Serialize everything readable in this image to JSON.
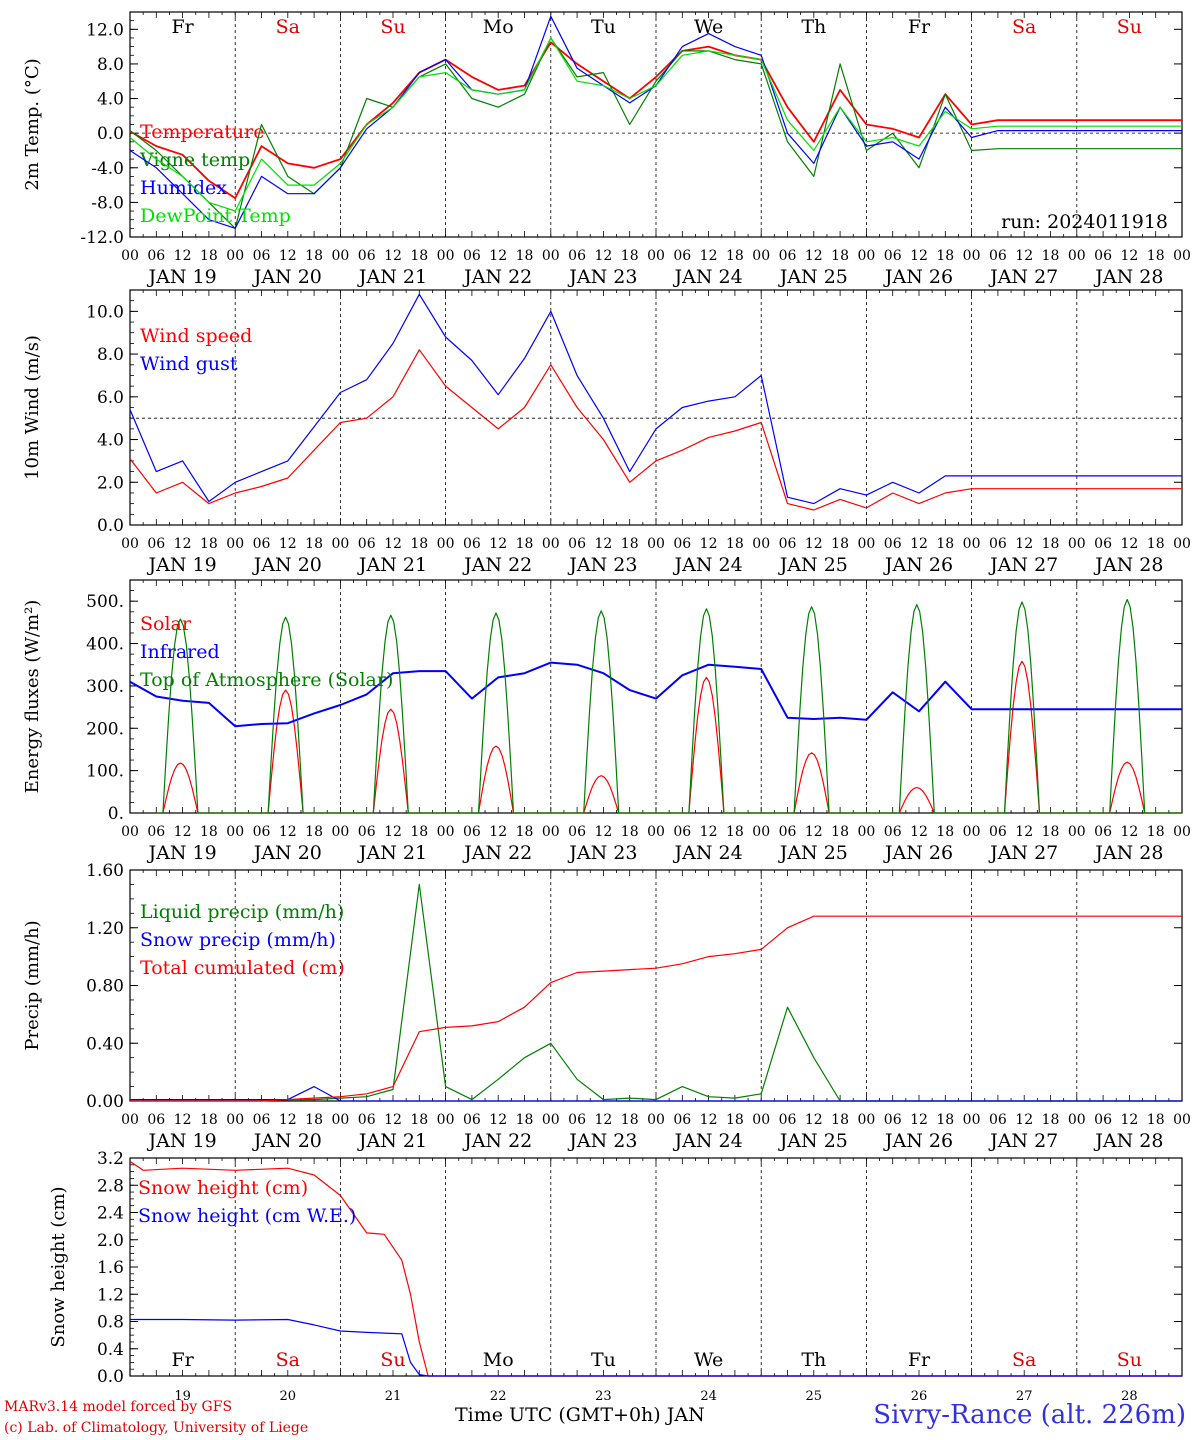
{
  "run_label": "run: 2024011918",
  "day_names": [
    "Fr",
    "Sa",
    "Su",
    "Mo",
    "Tu",
    "We",
    "Th",
    "Fr",
    "Sa",
    "Su"
  ],
  "day_name_colors": [
    "#000000",
    "#e00000",
    "#e00000",
    "#000000",
    "#000000",
    "#000000",
    "#000000",
    "#000000",
    "#e00000",
    "#e00000"
  ],
  "date_labels": [
    "JAN 19",
    "JAN 20",
    "JAN 21",
    "JAN 22",
    "JAN 23",
    "JAN 24",
    "JAN 25",
    "JAN 26",
    "JAN 27",
    "JAN 28"
  ],
  "hour_labels": [
    "00",
    "06",
    "12",
    "18"
  ],
  "final_hour_label": "00",
  "bottom_day_numbers": [
    "19",
    "20",
    "21",
    "22",
    "23",
    "24",
    "25",
    "26",
    "27",
    "28"
  ],
  "x_axis_title": "Time UTC (GMT+0h) JAN",
  "station": "Sivry-Rance (alt. 226m)",
  "credits": [
    "MARv3.14 model forced by GFS",
    "(c) Lab. of Climatology, University of Liege"
  ],
  "chart_data": [
    {
      "type": "line",
      "ylabel": "2m Temp. (°C)",
      "ylim": [
        -12,
        14
      ],
      "yticks": [
        "-12.0",
        "-8.0",
        "-4.0",
        "0.0",
        "4.0",
        "8.0",
        "12.0"
      ],
      "ytick_values": [
        -12,
        -8,
        -4,
        0,
        4,
        8,
        12
      ],
      "reference_line": 0,
      "x_hours": [
        0,
        6,
        12,
        18,
        24,
        30,
        36,
        42,
        48,
        54,
        60,
        66,
        72,
        78,
        84,
        90,
        96,
        102,
        108,
        114,
        120,
        126,
        132,
        138,
        144,
        150,
        156,
        162,
        168,
        174,
        180,
        186,
        192,
        198,
        204,
        210,
        216,
        222,
        228,
        234,
        240
      ],
      "series": [
        {
          "name": "Temperature",
          "color": "#ff0000",
          "values": [
            0.2,
            -1.5,
            -2.5,
            -5.5,
            -7.5,
            -1.5,
            -3.5,
            -4,
            -3,
            1,
            3.5,
            7,
            8.5,
            6.5,
            5,
            5.5,
            10.5,
            8,
            6,
            4,
            6.5,
            9.5,
            10,
            9,
            8.5,
            3,
            -1,
            5,
            1,
            0.5,
            -0.5,
            4.5,
            1,
            1.5,
            1.5,
            1.5,
            1.5,
            1.5,
            1.5,
            1.5,
            1.5
          ]
        },
        {
          "name": "Vigne temp",
          "color": "#008000",
          "values": [
            0.3,
            -2,
            -5,
            -8,
            -11,
            1,
            -5,
            -7,
            -4,
            4,
            3,
            6.5,
            8,
            4,
            3,
            4.5,
            11,
            6.5,
            7,
            1,
            6,
            9.5,
            9.5,
            8.5,
            8,
            -1,
            -5,
            8,
            -2,
            0,
            -4,
            4.5,
            -2,
            -1.8,
            -1.8,
            -1.8,
            -1.8,
            -1.8,
            -1.8,
            -1.8,
            -1.8
          ]
        },
        {
          "name": "Humidex",
          "color": "#0000ff",
          "values": [
            -2,
            -4,
            -7,
            -10,
            -11,
            -5,
            -7,
            -7,
            -4,
            0.5,
            3,
            7,
            8.5,
            5,
            4.5,
            5,
            13.5,
            7.5,
            5.5,
            3.5,
            5.5,
            10,
            11.5,
            10,
            9,
            0,
            -3.5,
            3,
            -1.5,
            -1,
            -3,
            3,
            -0.5,
            0.3,
            0.3,
            0.3,
            0.3,
            0.3,
            0.3,
            0.3,
            0.3
          ]
        },
        {
          "name": "DewPoint Temp",
          "color": "#00e000",
          "values": [
            -0.5,
            -3,
            -5,
            -8,
            -9,
            -3,
            -6,
            -6,
            -3.5,
            1,
            3,
            6.5,
            7,
            5,
            4.5,
            5,
            11,
            6,
            5.5,
            4,
            5.5,
            9,
            9.5,
            9,
            8.5,
            1.5,
            -2,
            3,
            -1,
            -0.5,
            -1.5,
            2.5,
            0.5,
            0.8,
            0.8,
            0.8,
            0.8,
            0.8,
            0.8,
            0.8,
            0.8
          ]
        }
      ]
    },
    {
      "type": "line",
      "ylabel": "10m Wind (m/s)",
      "ylim": [
        0,
        11
      ],
      "yticks": [
        "0.0",
        "2.0",
        "4.0",
        "6.0",
        "8.0",
        "10.0"
      ],
      "ytick_values": [
        0,
        2,
        4,
        6,
        8,
        10
      ],
      "reference_line": 5,
      "x_hours": [
        0,
        6,
        12,
        18,
        24,
        30,
        36,
        42,
        48,
        54,
        60,
        66,
        72,
        78,
        84,
        90,
        96,
        102,
        108,
        114,
        120,
        126,
        132,
        138,
        144,
        150,
        156,
        162,
        168,
        174,
        180,
        186,
        192,
        198,
        204,
        210,
        216,
        222,
        228,
        234,
        240
      ],
      "series": [
        {
          "name": "Wind speed",
          "color": "#ff0000",
          "values": [
            3.1,
            1.5,
            2,
            1,
            1.5,
            1.8,
            2.2,
            3.5,
            4.8,
            5,
            6,
            8.2,
            6.5,
            5.5,
            4.5,
            5.5,
            7.5,
            5.5,
            4,
            2,
            3,
            3.5,
            4.1,
            4.4,
            4.8,
            1,
            0.7,
            1.2,
            0.8,
            1.5,
            1,
            1.5,
            1.7,
            1.7,
            1.7,
            1.7,
            1.7,
            1.7,
            1.7,
            1.7,
            1.7
          ]
        },
        {
          "name": "Wind gust",
          "color": "#0000ff",
          "values": [
            5.4,
            2.5,
            3,
            1.1,
            2,
            2.5,
            3,
            4.6,
            6.2,
            6.8,
            8.5,
            10.8,
            8.8,
            7.7,
            6.1,
            7.8,
            10,
            7,
            5,
            2.5,
            4.5,
            5.5,
            5.8,
            6,
            7,
            1.3,
            1,
            1.7,
            1.4,
            2,
            1.5,
            2.3,
            2.3,
            2.3,
            2.3,
            2.3,
            2.3,
            2.3,
            2.3,
            2.3,
            2.3
          ]
        }
      ]
    },
    {
      "type": "line",
      "ylabel": "Energy fluxes (W/m²)",
      "ylim": [
        0,
        550
      ],
      "yticks": [
        "0.",
        "100.",
        "200.",
        "300.",
        "400.",
        "500."
      ],
      "ytick_values": [
        0,
        100,
        200,
        300,
        400,
        500
      ],
      "series": [
        {
          "name": "Solar",
          "color": "#ff0000",
          "day_peaks": [
            118,
            290,
            245,
            158,
            88,
            320,
            142,
            60,
            358,
            120
          ]
        },
        {
          "name": "Infrared",
          "color": "#0000ff",
          "x_hours": [
            0,
            6,
            12,
            18,
            24,
            30,
            36,
            42,
            48,
            54,
            60,
            66,
            72,
            78,
            84,
            90,
            96,
            102,
            108,
            114,
            120,
            126,
            132,
            138,
            144,
            150,
            156,
            162,
            168,
            174,
            180,
            186,
            192,
            198,
            204,
            210,
            216,
            222,
            228,
            234,
            240
          ],
          "values": [
            310,
            275,
            265,
            260,
            205,
            210,
            212,
            235,
            255,
            280,
            330,
            335,
            335,
            270,
            320,
            330,
            355,
            350,
            330,
            290,
            270,
            325,
            350,
            345,
            340,
            225,
            222,
            225,
            220,
            285,
            240,
            310,
            245,
            245,
            245,
            245,
            245,
            245,
            245,
            245,
            245
          ]
        },
        {
          "name": "Top of Atmosphere (Solar)",
          "color": "#008000",
          "day_peaks": [
            458,
            462,
            467,
            472,
            477,
            482,
            487,
            492,
            498,
            504
          ]
        }
      ]
    },
    {
      "type": "line",
      "ylabel": "Precip (mm/h)",
      "ylim": [
        0,
        1.6
      ],
      "yticks": [
        "0.00",
        "0.40",
        "0.80",
        "1.20",
        "1.60"
      ],
      "ytick_values": [
        0,
        0.4,
        0.8,
        1.2,
        1.6
      ],
      "x_hours": [
        0,
        6,
        12,
        18,
        24,
        30,
        36,
        42,
        48,
        54,
        60,
        66,
        72,
        78,
        84,
        90,
        96,
        102,
        108,
        114,
        120,
        126,
        132,
        138,
        144,
        150,
        156,
        162,
        168,
        174,
        180,
        186,
        192,
        198,
        204,
        210,
        216,
        222,
        228,
        234,
        240
      ],
      "series": [
        {
          "name": "Liquid precip (mm/h)",
          "color": "#008000",
          "values": [
            0.01,
            0.01,
            0.01,
            0.01,
            0.01,
            0.01,
            0.01,
            0.01,
            0.02,
            0.03,
            0.08,
            1.5,
            0.1,
            0.01,
            0.15,
            0.3,
            0.4,
            0.15,
            0.01,
            0.02,
            0.01,
            0.1,
            0.03,
            0.02,
            0.05,
            0.65,
            0.3,
            0,
            0,
            0,
            0,
            0,
            0,
            0,
            0,
            0,
            0,
            0,
            0,
            0,
            0
          ]
        },
        {
          "name": "Snow precip (mm/h)",
          "color": "#0000ff",
          "values": [
            0.01,
            0.01,
            0.01,
            0.01,
            0.01,
            0.01,
            0.01,
            0.1,
            0,
            0,
            0,
            0,
            0,
            0,
            0,
            0,
            0,
            0,
            0,
            0,
            0,
            0,
            0,
            0,
            0,
            0,
            0,
            0,
            0,
            0,
            0,
            0,
            0,
            0,
            0,
            0,
            0,
            0,
            0,
            0,
            0
          ]
        },
        {
          "name": "Total cumulated (cm)",
          "color": "#ff0000",
          "values": [
            0.0,
            0.0,
            0.0,
            0.0,
            0.0,
            0.0,
            0.01,
            0.02,
            0.03,
            0.05,
            0.1,
            0.48,
            0.51,
            0.52,
            0.55,
            0.65,
            0.82,
            0.89,
            0.9,
            0.91,
            0.92,
            0.95,
            1.0,
            1.02,
            1.05,
            1.2,
            1.28,
            1.28,
            1.28,
            1.28,
            1.28,
            1.28,
            1.28,
            1.28,
            1.28,
            1.28,
            1.28,
            1.28,
            1.28,
            1.28,
            1.28
          ]
        }
      ]
    },
    {
      "type": "line",
      "ylabel": "Snow height (cm)",
      "ylim": [
        0,
        3.2
      ],
      "yticks": [
        "0.0",
        "0.4",
        "0.8",
        "1.2",
        "1.6",
        "2.0",
        "2.4",
        "2.8",
        "3.2"
      ],
      "ytick_values": [
        0,
        0.4,
        0.8,
        1.2,
        1.6,
        2.0,
        2.4,
        2.8,
        3.2
      ],
      "x_hours": [
        0,
        3,
        12,
        24,
        36,
        42,
        48,
        54,
        58,
        62,
        64,
        66,
        68,
        70,
        240
      ],
      "series": [
        {
          "name": "Snow height (cm)",
          "color": "#ff0000",
          "values": [
            3.15,
            3.02,
            3.05,
            3.02,
            3.05,
            2.95,
            2.65,
            2.1,
            2.08,
            1.7,
            1.2,
            0.5,
            0.0,
            0.0,
            0.0
          ]
        },
        {
          "name": "Snow height (cm W.E.)",
          "color": "#0000ff",
          "values": [
            0.83,
            0.83,
            0.83,
            0.82,
            0.83,
            0.75,
            0.66,
            0.64,
            0.63,
            0.62,
            0.2,
            0.02,
            0.0,
            0.0,
            0.0
          ]
        }
      ]
    }
  ]
}
